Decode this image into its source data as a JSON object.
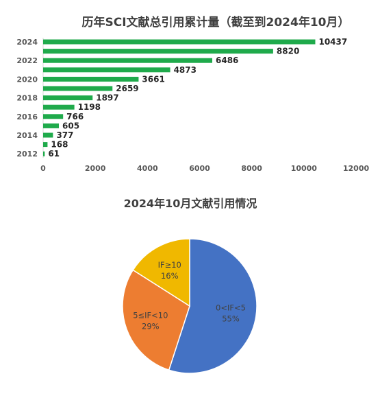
{
  "chart_data": [
    {
      "type": "bar",
      "orientation": "horizontal",
      "title": "历年SCI文献总引用累计量（截至到2024年10月）",
      "categories": [
        "2012",
        "2013",
        "2014",
        "2015",
        "2016",
        "2017",
        "2018",
        "2019",
        "2020",
        "2021",
        "2022",
        "2023",
        "2024"
      ],
      "values": [
        61,
        168,
        377,
        605,
        766,
        1198,
        1897,
        2659,
        3661,
        4873,
        6486,
        8820,
        10437
      ],
      "y_tick_labels": [
        "2012",
        "2014",
        "2016",
        "2018",
        "2020",
        "2022",
        "2024"
      ],
      "x_tick_labels": [
        "0",
        "2000",
        "4000",
        "6000",
        "8000",
        "10000",
        "12000"
      ],
      "xlim": [
        0,
        12000
      ],
      "grid": false,
      "bar_color": "#1faa4b"
    },
    {
      "type": "pie",
      "title": "2024年10月文献引用情况",
      "slices": [
        {
          "label": "0<IF<5",
          "value": 55,
          "pct": "55%",
          "color": "#4472c4"
        },
        {
          "label": "5≤IF<10",
          "value": 29,
          "pct": "29%",
          "color": "#ed7d31"
        },
        {
          "label": "IF≥10",
          "value": 16,
          "pct": "16%",
          "color": "#f0b800"
        }
      ]
    }
  ]
}
